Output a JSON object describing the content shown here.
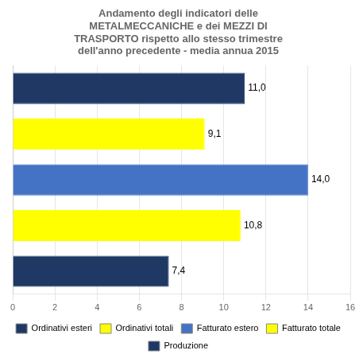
{
  "chart_data": {
    "type": "bar",
    "orientation": "horizontal",
    "title": "Andamento degli indicatori delle\nMETALMECCANICHE e dei MEZZI DI\nTRASPORTO rispetto allo stesso trimestre\ndell'anno precedente - media annua 2015",
    "categories": [
      "Ordinativi esteri",
      "Ordinativi totali",
      "Fatturato estero",
      "Fatturato totale",
      "Produzione"
    ],
    "values": [
      11.0,
      9.1,
      14.0,
      10.8,
      7.4
    ],
    "value_labels": [
      "11,0",
      "9,1",
      "14,0",
      "10,8",
      "7,4"
    ],
    "data_labels": true,
    "colors": [
      "#1F3864",
      "#FFFF00",
      "#4472C4",
      "#FFFF00",
      "#1F3864"
    ],
    "xlim": [
      0,
      16
    ],
    "xticks": [
      0,
      2,
      4,
      6,
      8,
      10,
      12,
      14,
      16
    ],
    "grid": true,
    "tick_labels": "x",
    "legend": "bottom"
  }
}
